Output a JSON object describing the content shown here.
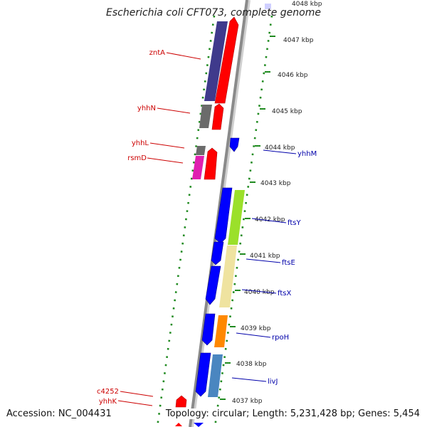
{
  "title": "Escherichia coli CFT073, complete genome",
  "footer": {
    "accession": "Accession: NC_004431",
    "summary": "Topology: circular; Length: 5,231,428 bp; Genes: 5,454"
  },
  "ticks": [
    "4048 kbp",
    "4047 kbp",
    "4046 kbp",
    "4045 kbp",
    "4044 kbp",
    "4043 kbp",
    "4042 kbp",
    "4041 kbp",
    "4040 kbp",
    "4039 kbp",
    "4038 kbp",
    "4037 kbp"
  ],
  "gene_labels_left": [
    "zntA",
    "yhhN",
    "yhhL",
    "rsmD",
    "c4252",
    "yhhK"
  ],
  "gene_labels_right": [
    "yhhM",
    "ftsY",
    "ftsE",
    "ftsX",
    "rpoH",
    "livJ"
  ],
  "colors": {
    "label_left": "#cc0000",
    "label_right": "#0000aa",
    "backbone": "#8a8a8a",
    "tick_dots": "#1f8a1f",
    "forward_gene": "#ff0000",
    "reverse_gene": "#0000ff"
  }
}
